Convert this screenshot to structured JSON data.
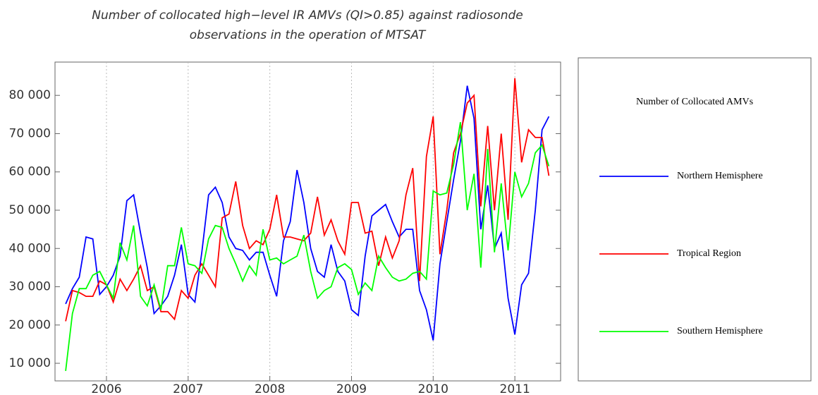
{
  "chart_data": {
    "type": "line",
    "title": [
      "Number of collocated high−level IR AMVs (QI>0.85) against radiosonde",
      "observations in the operation of MTSAT"
    ],
    "legend_title": "Number of Collocated AMVs",
    "x": [
      2005.5,
      2005.583,
      2005.667,
      2005.75,
      2005.833,
      2005.917,
      2006,
      2006.083,
      2006.167,
      2006.25,
      2006.333,
      2006.417,
      2006.5,
      2006.583,
      2006.667,
      2006.75,
      2006.833,
      2006.917,
      2007,
      2007.083,
      2007.167,
      2007.25,
      2007.333,
      2007.417,
      2007.5,
      2007.583,
      2007.667,
      2007.75,
      2007.833,
      2007.917,
      2008,
      2008.083,
      2008.167,
      2008.25,
      2008.333,
      2008.417,
      2008.5,
      2008.583,
      2008.667,
      2008.75,
      2008.833,
      2008.917,
      2009,
      2009.083,
      2009.167,
      2009.25,
      2009.333,
      2009.417,
      2009.5,
      2009.583,
      2009.667,
      2009.75,
      2009.833,
      2009.917,
      2010,
      2010.083,
      2010.167,
      2010.25,
      2010.333,
      2010.417,
      2010.5,
      2010.583,
      2010.667,
      2010.75,
      2010.833,
      2010.917,
      2011,
      2011.083,
      2011.167,
      2011.25,
      2011.333,
      2011.417
    ],
    "series": [
      {
        "name": "Northern Hemisphere",
        "color": "#0000ff",
        "values": [
          25500,
          29500,
          32500,
          43000,
          42500,
          28000,
          30000,
          33000,
          38000,
          52500,
          54000,
          44000,
          35000,
          23000,
          25000,
          27500,
          33000,
          41000,
          28000,
          26000,
          39000,
          54000,
          56000,
          52000,
          43000,
          40000,
          39500,
          37000,
          39000,
          39000,
          33000,
          27500,
          42000,
          47000,
          60500,
          52000,
          40000,
          34000,
          32500,
          41000,
          34000,
          31500,
          24000,
          22500,
          38000,
          48500,
          50000,
          51500,
          47000,
          43000,
          45000,
          45000,
          29000,
          24000,
          16000,
          36000,
          47000,
          58000,
          68000,
          82500,
          74000,
          45000,
          56500,
          40000,
          44000,
          27000,
          17500,
          30500,
          33500,
          50000,
          71000,
          74500
        ]
      },
      {
        "name": "Tropical Region",
        "color": "#ff0000",
        "values": [
          21000,
          29000,
          28500,
          27500,
          27500,
          31500,
          30500,
          26000,
          32000,
          29000,
          32000,
          35500,
          29000,
          30000,
          23500,
          23500,
          21500,
          29000,
          27000,
          33000,
          36000,
          33000,
          30000,
          48000,
          49000,
          57500,
          46000,
          40000,
          42000,
          41000,
          45000,
          54000,
          43000,
          43000,
          42500,
          42000,
          44000,
          53500,
          43500,
          47500,
          42000,
          38500,
          52000,
          52000,
          44000,
          44500,
          35500,
          43000,
          37500,
          42000,
          54000,
          61000,
          31500,
          64000,
          74500,
          38500,
          50000,
          65000,
          70000,
          78000,
          80000,
          51000,
          72000,
          50000,
          70000,
          47500,
          84500,
          62500,
          71000,
          69000,
          69000,
          59000
        ]
      },
      {
        "name": "Southern Hemisphere",
        "color": "#00ff00",
        "values": [
          8000,
          23000,
          29500,
          29500,
          33000,
          34000,
          30500,
          27000,
          41500,
          37000,
          46000,
          27500,
          25000,
          30500,
          24000,
          35500,
          35500,
          45500,
          36000,
          35500,
          33500,
          42500,
          46000,
          45500,
          40000,
          36000,
          31500,
          35500,
          33000,
          45000,
          37000,
          37500,
          36000,
          37000,
          38000,
          43500,
          34000,
          27000,
          29000,
          30000,
          35000,
          36000,
          34500,
          28000,
          31000,
          29000,
          38000,
          35000,
          32500,
          31500,
          32000,
          33500,
          34000,
          32000,
          55000,
          54000,
          54500,
          62000,
          73000,
          50000,
          59500,
          35000,
          66000,
          39000,
          57000,
          39500,
          60000,
          53500,
          57000,
          65000,
          67000,
          61500
        ]
      }
    ],
    "xlim": [
      2005.37,
      2011.56
    ],
    "xticks": [
      2006,
      2007,
      2008,
      2009,
      2010,
      2011
    ],
    "ylim": [
      5400,
      88700
    ],
    "yticks": [
      {
        "value": 10000,
        "label": "10 000"
      },
      {
        "value": 20000,
        "label": "20 000"
      },
      {
        "value": 30000,
        "label": "30 000"
      },
      {
        "value": 40000,
        "label": "40 000"
      },
      {
        "value": 50000,
        "label": "50 000"
      },
      {
        "value": 60000,
        "label": "60 000"
      },
      {
        "value": 70000,
        "label": "70 000"
      },
      {
        "value": 80000,
        "label": "80 000"
      }
    ],
    "xgrid": true,
    "legend": "right"
  }
}
